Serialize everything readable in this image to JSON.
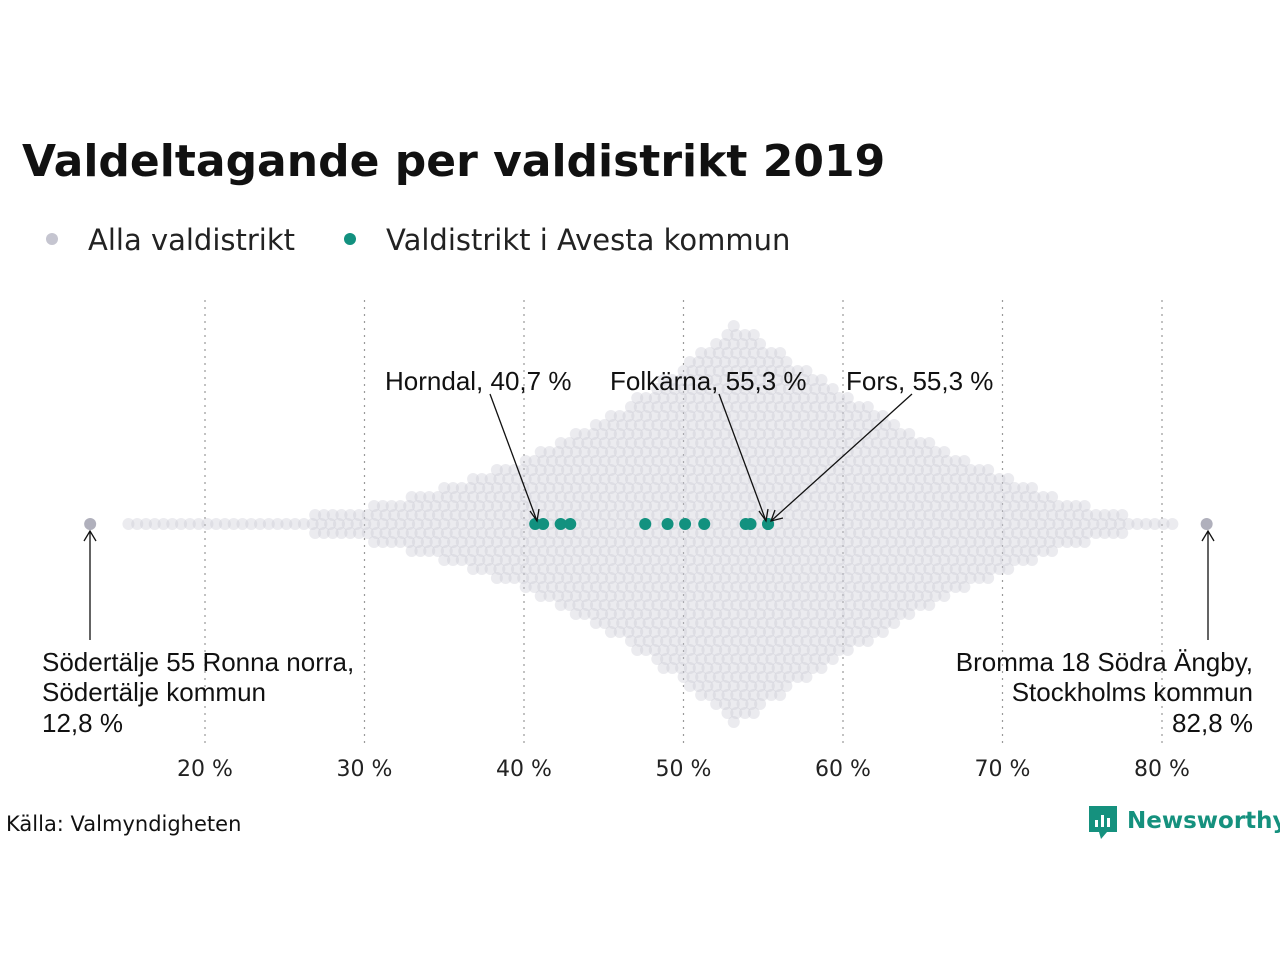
{
  "chart_data": {
    "type": "scatter",
    "subtype": "beeswarm",
    "title": "Valdeltagande per valdistrikt 2019",
    "xlabel": "",
    "ylabel": "",
    "xlim": [
      10,
      86
    ],
    "x_ticks": [
      20,
      30,
      40,
      50,
      60,
      70,
      80
    ],
    "x_tick_labels": [
      "20 %",
      "30 %",
      "40 %",
      "50 %",
      "60 %",
      "70 %",
      "80 %"
    ],
    "grid": "vertical-dotted",
    "legend": {
      "placement": "top-left",
      "entries": [
        {
          "label": "Alla valdistrikt",
          "color": "#c5c5d0"
        },
        {
          "label": "Valdistrikt i Avesta kommun",
          "color": "#12917f"
        }
      ]
    },
    "series": [
      {
        "name": "Alla valdistrikt",
        "color": "#c5c5d0",
        "distribution": {
          "peak": 53.5,
          "min": 12.8,
          "max": 82.8
        },
        "extremes": [
          12.8,
          82.8
        ]
      },
      {
        "name": "Valdistrikt i Avesta kommun",
        "color": "#12917f",
        "x": [
          40.7,
          41.2,
          42.3,
          42.9,
          47.6,
          49.0,
          50.1,
          51.3,
          53.9,
          54.2,
          55.3,
          55.3
        ]
      }
    ],
    "annotations": [
      {
        "id": "horndal",
        "text": "Horndal, 40,7 %",
        "x": 40.7
      },
      {
        "id": "folkarna",
        "text": "Folkärna, 55,3 %",
        "x": 55.3
      },
      {
        "id": "fors",
        "text": "Fors, 55,3 %",
        "x": 55.3
      },
      {
        "id": "min",
        "lines": [
          "Södertälje 55 Ronna norra,",
          "Södertälje kommun",
          "12,8 %"
        ],
        "x": 12.8
      },
      {
        "id": "max",
        "lines": [
          "Bromma 18 Södra Ängby,",
          "Stockholms kommun",
          "82,8 %"
        ],
        "x": 82.8
      }
    ]
  },
  "source": "Källa: Valmyndigheten",
  "brand": {
    "name": "Newsworthy",
    "color": "#15917e"
  }
}
